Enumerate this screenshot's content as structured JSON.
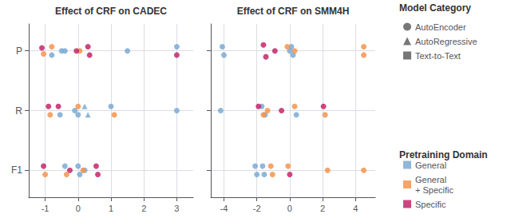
{
  "chart_data": [
    {
      "type": "scatter",
      "title": "Effect of CRF on CADEC",
      "xlim": [
        -1.5,
        3.5
      ],
      "xticks": [
        -1,
        0,
        1,
        2,
        3
      ],
      "ylim": [
        -0.45,
        2.45
      ],
      "yticks": [
        {
          "value": 0,
          "label": "F1"
        },
        {
          "value": 1,
          "label": "R"
        },
        {
          "value": 2,
          "label": "P"
        }
      ],
      "grid": true,
      "series": [
        {
          "name": "General",
          "color": "#7BAAD4",
          "marker": "o",
          "x": [
            -0.8,
            -0.5,
            -0.4,
            1.5,
            3.0,
            -0.55,
            -0.1,
            0.0,
            1.0,
            3.0,
            -0.4,
            0.0,
            0.05,
            0.2
          ],
          "values": [
            1.93,
            2,
            2,
            2,
            2.07,
            0.93,
            1,
            0.93,
            1.07,
            1,
            0.07,
            0.07,
            -0.07,
            0
          ]
        },
        {
          "name": "General",
          "color": "#7BAAD4",
          "marker": "^",
          "x": [
            0.2,
            0.3
          ],
          "values": [
            1.07,
            0.93
          ]
        },
        {
          "name": "General\n+ Specific",
          "color": "#F5944E",
          "marker": "o",
          "x": [
            -1.05,
            -0.8,
            0.05,
            -0.85,
            0.0,
            1.1,
            -1.0,
            -0.35,
            0.15
          ],
          "values": [
            1.95,
            2.07,
            2,
            0.93,
            1.07,
            0.93,
            -0.07,
            -0.07,
            0
          ]
        },
        {
          "name": "Specific",
          "color": "#C2276A",
          "marker": "o",
          "x": [
            -1.1,
            -0.05,
            0.3,
            0.35,
            3.0,
            -0.9,
            -0.6,
            -1.05,
            -0.25,
            0.55,
            0.6
          ],
          "values": [
            2.05,
            2,
            2.07,
            1.93,
            1.93,
            1.07,
            1.07,
            0.07,
            0,
            0.07,
            -0.07
          ]
        }
      ]
    },
    {
      "type": "scatter",
      "title": "Effect of CRF on SMM4H",
      "xlim": [
        -4.8,
        5.2
      ],
      "xticks": [
        -4,
        -2,
        0,
        2,
        4
      ],
      "ylim": [
        -0.45,
        2.45
      ],
      "yticks": [
        0,
        1,
        2
      ],
      "tick_labels": "x",
      "grid": true,
      "series": [
        {
          "name": "General",
          "color": "#7BAAD4",
          "marker": "o",
          "x": [
            -4.1,
            -4.0,
            0.0,
            0.1,
            0.2,
            -4.2,
            -1.7,
            -1.5,
            0.4,
            -2.1,
            -2.0,
            -1.65,
            -1.55
          ],
          "values": [
            2.07,
            1.93,
            2,
            2.07,
            1.93,
            1,
            1.07,
            0.93,
            0.93,
            0.07,
            -0.07,
            0.07,
            -0.07
          ]
        },
        {
          "name": "General\n+ Specific",
          "color": "#F5944E",
          "marker": "o",
          "x": [
            -0.15,
            0.3,
            4.5,
            4.5,
            -1.6,
            -1.35,
            0.3,
            2.15,
            -1.15,
            -1.05,
            -0.1,
            2.3,
            4.5
          ],
          "values": [
            2.07,
            2,
            2.07,
            1.93,
            0.93,
            1,
            1.07,
            0.93,
            0.07,
            -0.07,
            0.07,
            0,
            0
          ]
        },
        {
          "name": "Specific",
          "color": "#C2276A",
          "marker": "o",
          "x": [
            -1.6,
            -1.45,
            -0.9,
            -1.9,
            -0.5,
            2.05,
            0.0
          ],
          "values": [
            2.1,
            1.9,
            2,
            1.07,
            1,
            1.07,
            -0.07
          ]
        }
      ]
    }
  ],
  "legends": [
    {
      "title": "Model Category",
      "legend": "upper right",
      "color": "#555555",
      "entries": [
        {
          "name": "AutoEncoder",
          "marker": "o"
        },
        {
          "name": "AutoRegressive",
          "marker": "^"
        },
        {
          "name": "Text-to-Text",
          "marker": "s"
        }
      ]
    },
    {
      "title": "Pretraining Domain",
      "legend": "lower right",
      "entries": [
        {
          "name": "General",
          "color": "#7BAAD4"
        },
        {
          "name": "General\n+ Specific",
          "color": "#F5944E"
        },
        {
          "name": "Specific",
          "color": "#C2276A"
        }
      ]
    }
  ]
}
